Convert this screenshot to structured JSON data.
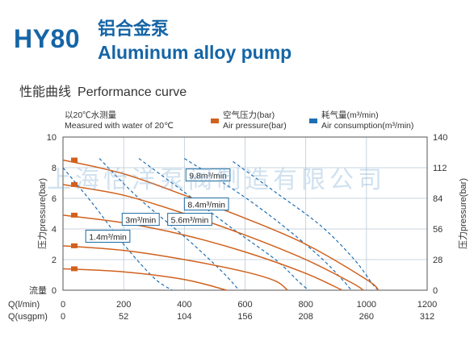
{
  "header": {
    "model": "HY80",
    "title_cn": "铝合金泵",
    "title_en": "Aluminum alloy pump",
    "section_cn": "性能曲线",
    "section_en": "Performance curve"
  },
  "watermark": "上海怡洋泵阀制造有限公司",
  "colors": {
    "brand_blue": "#1565a6",
    "air_pressure": "#d0611e",
    "air_consumption": "#1f6fb3",
    "grid": "#b9c9d6"
  },
  "chart_data": {
    "type": "line",
    "note_cn": "以20℃水测量",
    "note_en": "Measured with water of 20℃",
    "legend": [
      {
        "label_cn": "空气压力(bar)",
        "label_en": "Air pressure(bar)",
        "style": "solid",
        "color": "#d0611e"
      },
      {
        "label_cn": "耗气量(m³/min)",
        "label_en": "Air consumption(m³/min)",
        "style": "dashed",
        "color": "#1f6fb3"
      }
    ],
    "y_left": {
      "label": "压力pressure(bar)",
      "lim": [
        0,
        10
      ],
      "ticks": [
        "0",
        "2",
        "4",
        "6",
        "8",
        "10"
      ],
      "zero_label": "流量"
    },
    "y_right": {
      "label": "压力pressure(bar)",
      "lim": [
        0,
        140
      ],
      "ticks": [
        "0",
        "28",
        "56",
        "84",
        "112",
        "140"
      ]
    },
    "x": {
      "lim": [
        0,
        1200
      ],
      "ticks_lmin": [
        "0",
        "200",
        "400",
        "600",
        "800",
        "1000",
        "1200"
      ],
      "ticks_usgpm": [
        "0",
        "52",
        "104",
        "156",
        "208",
        "260",
        "312"
      ],
      "label_lmin": "Q(l/min)",
      "label_usgpm": "Q(usgpm)"
    },
    "grid": true,
    "pressure_series": [
      {
        "name": "8.4 bar",
        "points": [
          [
            0,
            8.5
          ],
          [
            200,
            7.6
          ],
          [
            400,
            6.2
          ],
          [
            600,
            4.7
          ],
          [
            800,
            3.0
          ],
          [
            1000,
            0.7
          ],
          [
            1040,
            0.0
          ]
        ]
      },
      {
        "name": "7 bar",
        "points": [
          [
            0,
            6.9
          ],
          [
            200,
            6.2
          ],
          [
            400,
            5.0
          ],
          [
            600,
            3.6
          ],
          [
            800,
            2.0
          ],
          [
            950,
            0.5
          ],
          [
            990,
            0.0
          ]
        ]
      },
      {
        "name": "5 bar",
        "points": [
          [
            0,
            4.9
          ],
          [
            200,
            4.4
          ],
          [
            400,
            3.6
          ],
          [
            600,
            2.5
          ],
          [
            800,
            1.1
          ],
          [
            920,
            0.0
          ]
        ]
      },
      {
        "name": "3 bar",
        "points": [
          [
            0,
            2.9
          ],
          [
            200,
            2.6
          ],
          [
            400,
            2.0
          ],
          [
            600,
            1.2
          ],
          [
            700,
            0.6
          ],
          [
            740,
            0.0
          ]
        ]
      },
      {
        "name": "1.4 bar",
        "points": [
          [
            0,
            1.4
          ],
          [
            200,
            1.2
          ],
          [
            400,
            0.7
          ],
          [
            540,
            0.0
          ]
        ]
      }
    ],
    "consumption_series": [
      {
        "name": "1.4m³/min",
        "points": [
          [
            0,
            8.0
          ],
          [
            100,
            5.6
          ],
          [
            200,
            3.0
          ],
          [
            300,
            0.8
          ],
          [
            360,
            0.0
          ]
        ]
      },
      {
        "name": "3m³/min",
        "points": [
          [
            120,
            8.6
          ],
          [
            250,
            6.0
          ],
          [
            400,
            3.5
          ],
          [
            520,
            1.3
          ],
          [
            580,
            0.0
          ]
        ]
      },
      {
        "name": "5.6m³/min",
        "points": [
          [
            250,
            8.6
          ],
          [
            400,
            6.4
          ],
          [
            560,
            4.0
          ],
          [
            700,
            2.0
          ],
          [
            780,
            0.5
          ],
          [
            810,
            0.0
          ]
        ]
      },
      {
        "name": "8.4m³/min",
        "points": [
          [
            400,
            8.6
          ],
          [
            560,
            6.6
          ],
          [
            700,
            4.6
          ],
          [
            840,
            2.3
          ],
          [
            920,
            0.7
          ],
          [
            950,
            0.0
          ]
        ]
      },
      {
        "name": "9.8m³/min",
        "points": [
          [
            560,
            8.4
          ],
          [
            700,
            6.4
          ],
          [
            850,
            4.2
          ],
          [
            960,
            2.0
          ],
          [
            1020,
            0.4
          ],
          [
            1040,
            0.0
          ]
        ]
      }
    ],
    "annotations": [
      {
        "text": "9.8m³/min",
        "x": 405,
        "y": 7.5
      },
      {
        "text": "8.4m³/min",
        "x": 400,
        "y": 5.6
      },
      {
        "text": "3m³/min",
        "x": 195,
        "y": 4.6
      },
      {
        "text": "5.6m³/min",
        "x": 345,
        "y": 4.6
      },
      {
        "text": "1.4m³/min",
        "x": 75,
        "y": 3.5
      }
    ]
  }
}
